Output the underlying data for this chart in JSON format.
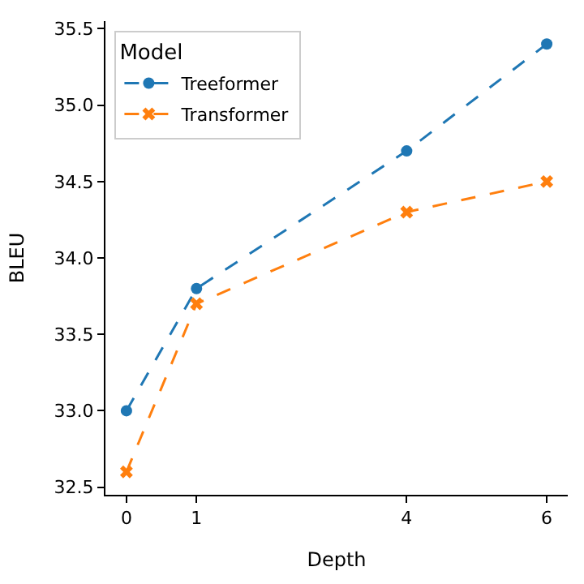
{
  "chart_data": {
    "type": "line",
    "xlabel": "Depth",
    "ylabel": "BLEU",
    "legend_title": "Model",
    "legend": "top left",
    "line_style": "dashed",
    "x": [
      0,
      1,
      4,
      6
    ],
    "xlim": [
      -0.3,
      6.3
    ],
    "xticks": [
      0,
      1,
      4,
      6
    ],
    "ylim": [
      32.45,
      35.55
    ],
    "yticks": [
      32.5,
      {
        "value": 33,
        "label": "33.0"
      },
      33.5,
      {
        "value": 34,
        "label": "34.0"
      },
      34.5,
      {
        "value": 35,
        "label": "35.0"
      },
      35.5
    ],
    "series": [
      {
        "name": "Treeformer",
        "color": "#1f77b4",
        "marker": "circle",
        "values": [
          33.0,
          33.8,
          34.7,
          35.4
        ]
      },
      {
        "name": "Transformer",
        "color": "#ff7f0e",
        "marker": "cross",
        "values": [
          32.6,
          33.7,
          34.3,
          34.5
        ]
      }
    ]
  }
}
